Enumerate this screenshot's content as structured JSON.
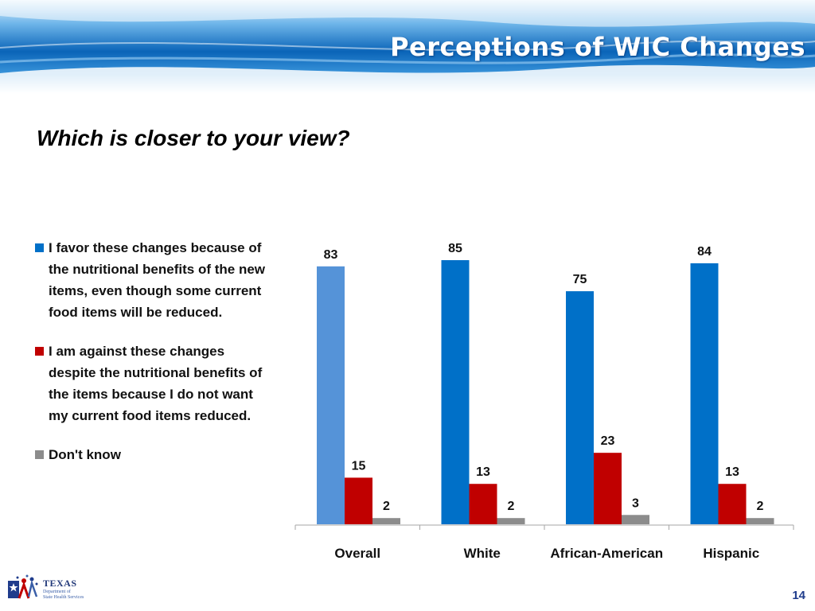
{
  "slide": {
    "title": "Perceptions of WIC Changes",
    "question": "Which is closer to your view?",
    "page_number": "14"
  },
  "logo": {
    "name": "TEXAS",
    "sub1": "Department of",
    "sub2": "State Health Services",
    "icon": "texas-star-people-icon"
  },
  "colors": {
    "favor": "#0070C8",
    "favor_overall": "#5593D8",
    "against": "#C00000",
    "dont_know": "#8C8C8C",
    "axis": "#A6A6A6"
  },
  "chart_data": {
    "type": "bar",
    "categories": [
      "Overall",
      "White",
      "African-American",
      "Hispanic"
    ],
    "series": [
      {
        "name": "I favor these changes because of the nutritional  benefits of the new items, even though some current food items will be reduced.",
        "values": [
          83,
          85,
          75,
          84
        ]
      },
      {
        "name": "I am against these changes despite the nutritional  benefits of the items because I do not want my current food items reduced.",
        "values": [
          15,
          13,
          23,
          13
        ]
      },
      {
        "name": "Don't know",
        "values": [
          2,
          2,
          3,
          2
        ]
      }
    ],
    "ylim": [
      0,
      85
    ],
    "grid": false,
    "legend": "left",
    "data_labels": true
  }
}
